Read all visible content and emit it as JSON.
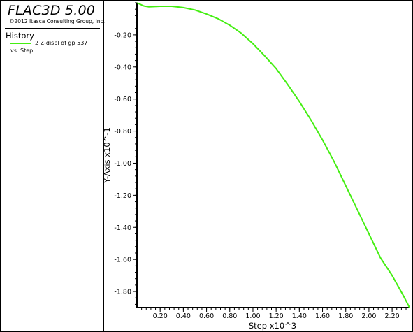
{
  "legend": {
    "app_title": "FLAC3D 5.00",
    "copyright": "©2012 Itasca Consulting Group, Inc.",
    "history_label": "History",
    "series_label": "2 Z-displ of gp 537",
    "series_sub": "vs. Step"
  },
  "colors": {
    "series": "#44ee11",
    "axis": "#000000",
    "background": "#ffffff"
  },
  "chart_data": {
    "type": "line",
    "title": "",
    "xlabel": "Step x10^3",
    "ylabel": "Y-Axis x10^-1",
    "xlim": [
      0.0,
      2.35
    ],
    "ylim": [
      -1.9,
      0.0
    ],
    "x_ticks": [
      0.2,
      0.4,
      0.6,
      0.8,
      1.0,
      1.2,
      1.4,
      1.6,
      1.8,
      2.0,
      2.2
    ],
    "x_tick_labels": [
      "0.20",
      "0.40",
      "0.60",
      "0.80",
      "1.00",
      "1.20",
      "1.40",
      "1.60",
      "1.80",
      "2.00",
      "2.20"
    ],
    "y_ticks": [
      -0.2,
      -0.4,
      -0.6,
      -0.8,
      -1.0,
      -1.2,
      -1.4,
      -1.6,
      -1.8
    ],
    "y_tick_labels": [
      "-0.20",
      "-0.40",
      "-0.60",
      "-0.80",
      "-1.00",
      "-1.20",
      "-1.40",
      "-1.60",
      "-1.80"
    ],
    "grid": false,
    "series": [
      {
        "name": "2 Z-displ of gp 537",
        "color": "#44ee11",
        "x": [
          0.0,
          0.06,
          0.1,
          0.2,
          0.3,
          0.4,
          0.5,
          0.6,
          0.7,
          0.8,
          0.9,
          1.0,
          1.1,
          1.2,
          1.3,
          1.4,
          1.5,
          1.6,
          1.7,
          1.8,
          1.9,
          2.0,
          2.1,
          2.2,
          2.3,
          2.35
        ],
        "y": [
          0.0,
          -0.02,
          -0.025,
          -0.022,
          -0.022,
          -0.03,
          -0.045,
          -0.07,
          -0.1,
          -0.14,
          -0.19,
          -0.255,
          -0.33,
          -0.41,
          -0.51,
          -0.615,
          -0.73,
          -0.855,
          -0.99,
          -1.14,
          -1.29,
          -1.44,
          -1.59,
          -1.7,
          -1.83,
          -1.9
        ]
      }
    ]
  }
}
